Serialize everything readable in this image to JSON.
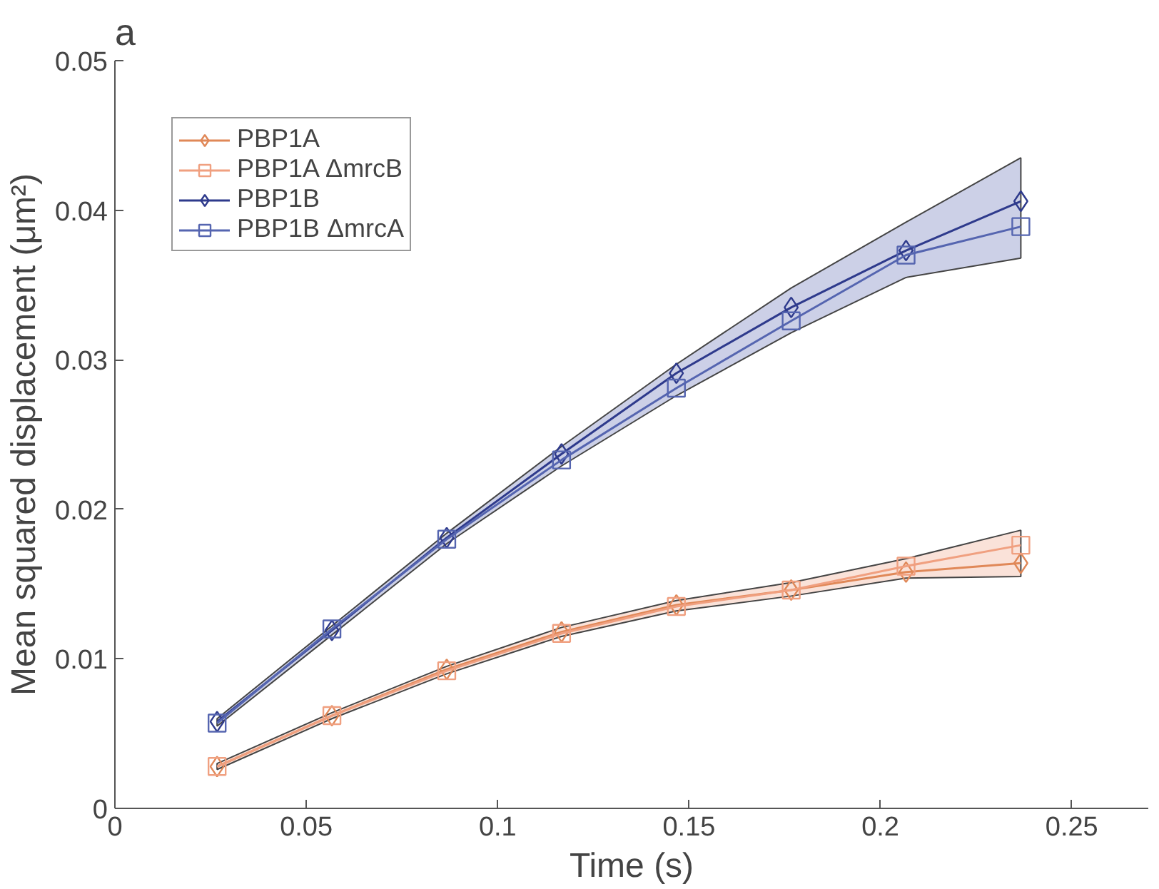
{
  "chart_data": {
    "type": "line",
    "title": "a",
    "xlabel": "Time (s)",
    "ylabel": "Mean squared displacement (μm²)",
    "x": [
      0.0267,
      0.0567,
      0.0867,
      0.1167,
      0.1467,
      0.1767,
      0.2067,
      0.2367
    ],
    "xlim": [
      0,
      0.27
    ],
    "xticks": [
      0,
      0.05,
      0.1,
      0.15,
      0.2,
      0.25
    ],
    "ylim": [
      0,
      0.05
    ],
    "yticks": [
      0,
      0.01,
      0.02,
      0.03,
      0.04,
      0.05
    ],
    "grid": false,
    "legend": "top left",
    "line_style": "solid",
    "series": [
      {
        "name": "PBP1A",
        "color": "#e08858",
        "marker": "diamond",
        "values": [
          0.0028,
          0.0062,
          0.0093,
          0.0118,
          0.0136,
          0.0146,
          0.0158,
          0.0164
        ]
      },
      {
        "name": "PBP1A ΔmrcB",
        "color": "#f0a080",
        "marker": "square",
        "values": [
          0.0028,
          0.0062,
          0.0092,
          0.0117,
          0.0135,
          0.0146,
          0.0162,
          0.0176
        ],
        "lower": [
          0.0026,
          0.006,
          0.009,
          0.0115,
          0.0132,
          0.0142,
          0.0154,
          0.0155
        ],
        "upper": [
          0.003,
          0.0064,
          0.0095,
          0.0121,
          0.0139,
          0.0151,
          0.0167,
          0.0186
        ]
      },
      {
        "name": "PBP1B",
        "color": "#2e3a8c",
        "marker": "diamond",
        "values": [
          0.0058,
          0.0119,
          0.0181,
          0.0237,
          0.0291,
          0.0335,
          0.0373,
          0.0406
        ]
      },
      {
        "name": "PBP1B ΔmrcA",
        "color": "#5565b0",
        "marker": "square",
        "values": [
          0.0057,
          0.012,
          0.018,
          0.0233,
          0.0281,
          0.0326,
          0.037,
          0.0389
        ],
        "lower": [
          0.0055,
          0.0116,
          0.0177,
          0.0229,
          0.0276,
          0.0318,
          0.0355,
          0.0368
        ],
        "upper": [
          0.006,
          0.0122,
          0.0184,
          0.0242,
          0.0297,
          0.0348,
          0.0392,
          0.0435
        ]
      }
    ]
  }
}
